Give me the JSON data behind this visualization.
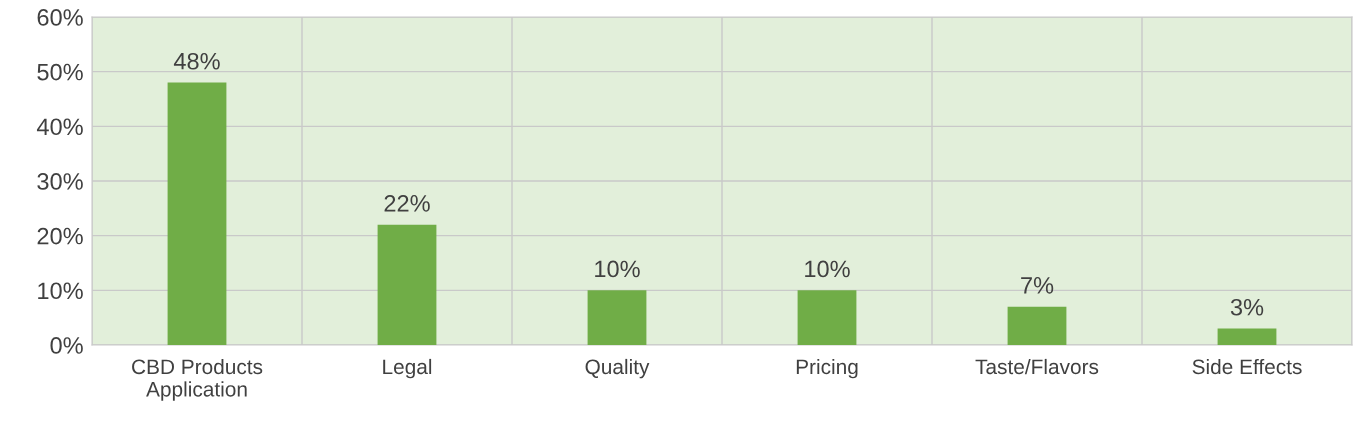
{
  "chart_data": {
    "type": "bar",
    "categories": [
      "CBD Products\nApplication",
      "Legal",
      "Quality",
      "Pricing",
      "Taste/Flavors",
      "Side Effects"
    ],
    "values": [
      48,
      22,
      10,
      10,
      7,
      3
    ],
    "value_labels": [
      "48%",
      "22%",
      "10%",
      "10%",
      "7%",
      "3%"
    ],
    "color": "#70ad47",
    "ylim": [
      0,
      60
    ],
    "yticks": [
      {
        "value": 0,
        "label": "0%"
      },
      {
        "value": 10,
        "label": "10%"
      },
      {
        "value": 20,
        "label": "20%"
      },
      {
        "value": 30,
        "label": "30%"
      },
      {
        "value": 40,
        "label": "40%"
      },
      {
        "value": 50,
        "label": "50%"
      },
      {
        "value": 60,
        "label": "60%"
      }
    ],
    "grid": true
  }
}
